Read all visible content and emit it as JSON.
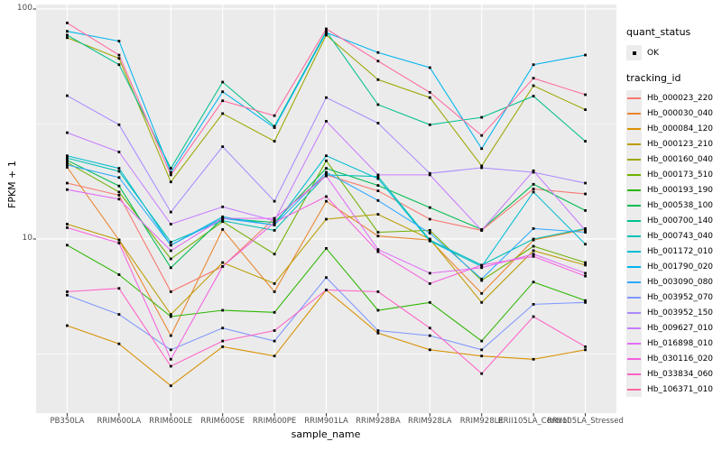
{
  "figure": {
    "y_axis_title": "FPKM + 1",
    "x_axis_title": "sample_name",
    "legend": {
      "quant_title": "quant_status",
      "quant_item": "OK",
      "series_title": "tracking_id"
    },
    "panel_bg": "#ebebeb",
    "grid_color": "#ffffff",
    "point_color": "#000000",
    "axis_text_color": "#4d4d4d"
  },
  "chart_data": {
    "type": "line",
    "title": "",
    "xlabel": "sample_name",
    "ylabel": "FPKM + 1",
    "yscale": "log10",
    "ylim": [
      1.75,
      104.6
    ],
    "y_ticks": [
      {
        "label": "100",
        "value": 100
      },
      {
        "label": "10",
        "value": 10
      }
    ],
    "y_minor_ticks": [
      31.62,
      3.162
    ],
    "grid": true,
    "legend_position": "right",
    "x": [
      "PB350LA",
      "RRIM600LA",
      "RRIM600LE",
      "RRIM600SE",
      "RRIM600PE",
      "RRIM901LA",
      "RRIM928BA",
      "RRIM928LA",
      "RRIM928LE",
      "RRII105LA_Control",
      "RRII105LA_Stressed"
    ],
    "series": [
      {
        "name": "Hb_000023_220",
        "color": "#F8766D",
        "quant_status": "OK",
        "values": [
          17.5,
          15.5,
          5.9,
          7.6,
          12.3,
          19.0,
          16.2,
          12.2,
          10.9,
          16.5,
          15.7
        ]
      },
      {
        "name": "Hb_000030_040",
        "color": "#E9842C",
        "quant_status": "OK",
        "values": [
          20.5,
          9.9,
          3.8,
          11.0,
          5.9,
          14.6,
          10.3,
          9.9,
          5.8,
          9.9,
          11.0
        ]
      },
      {
        "name": "Hb_000084_120",
        "color": "#D89000",
        "quant_status": "OK",
        "values": [
          4.2,
          3.5,
          2.3,
          3.4,
          3.1,
          6.0,
          3.9,
          3.3,
          3.1,
          3.0,
          3.3
        ]
      },
      {
        "name": "Hb_000123_210",
        "color": "#BC9C00",
        "quant_status": "OK",
        "values": [
          11.6,
          9.9,
          4.7,
          7.9,
          6.4,
          12.2,
          12.8,
          10.0,
          5.3,
          8.9,
          7.7
        ]
      },
      {
        "name": "Hb_000160_040",
        "color": "#9CA700",
        "quant_status": "OK",
        "values": [
          75,
          61,
          17.7,
          35.1,
          26.6,
          77,
          49.3,
          41.2,
          20.8,
          46.4,
          36.5
        ]
      },
      {
        "name": "Hb_000173_510",
        "color": "#6FB000",
        "quant_status": "OK",
        "values": [
          21.5,
          16.0,
          8.2,
          11.9,
          8.6,
          21.9,
          10.7,
          10.9,
          6.6,
          9.3,
          7.9
        ]
      },
      {
        "name": "Hb_000193_190",
        "color": "#2CB600",
        "quant_status": "OK",
        "values": [
          9.4,
          7.0,
          4.6,
          4.9,
          4.8,
          9.1,
          4.9,
          5.3,
          3.6,
          6.5,
          5.4
        ]
      },
      {
        "name": "Hb_000538_100",
        "color": "#00BC51",
        "quant_status": "OK",
        "values": [
          22.0,
          17.0,
          7.5,
          12.3,
          11.8,
          20.3,
          17.1,
          13.7,
          11.0,
          17.3,
          13.3
        ]
      },
      {
        "name": "Hb_000700_140",
        "color": "#00C08D",
        "quant_status": "OK",
        "values": [
          77,
          57.3,
          20.3,
          48.1,
          30.9,
          80,
          38.4,
          31.4,
          33.8,
          41.8,
          26.6
        ]
      },
      {
        "name": "Hb_000743_040",
        "color": "#00C0B4",
        "quant_status": "OK",
        "values": [
          22.5,
          19.7,
          9.7,
          12.0,
          10.9,
          19.0,
          18.7,
          9.9,
          7.7,
          10.0,
          11.1
        ]
      },
      {
        "name": "Hb_001172_010",
        "color": "#00BDD2",
        "quant_status": "OK",
        "values": [
          23.0,
          20.3,
          9.4,
          12.5,
          11.5,
          23.0,
          18.3,
          9.8,
          7.6,
          16.0,
          9.5
        ]
      },
      {
        "name": "Hb_001790_020",
        "color": "#00B4EF",
        "quant_status": "OK",
        "values": [
          80,
          72.5,
          19.5,
          43.7,
          30.5,
          79,
          64.7,
          55.6,
          24.7,
          57.3,
          63.1
        ]
      },
      {
        "name": "Hb_003090_080",
        "color": "#2CA9FF",
        "quant_status": "OK",
        "values": [
          21.0,
          18.5,
          9.4,
          12.3,
          11.5,
          19.5,
          14.7,
          10.6,
          6.7,
          11.1,
          10.7
        ]
      },
      {
        "name": "Hb_003952_070",
        "color": "#7F96FF",
        "quant_status": "OK",
        "values": [
          5.7,
          4.7,
          3.3,
          4.1,
          3.6,
          6.8,
          4.0,
          3.8,
          3.3,
          5.2,
          5.3
        ]
      },
      {
        "name": "Hb_003952_150",
        "color": "#A98AFF",
        "quant_status": "OK",
        "values": [
          42,
          31.4,
          13.1,
          25.2,
          14.6,
          41.2,
          31.9,
          19.3,
          20.4,
          19.5,
          17.5
        ]
      },
      {
        "name": "Hb_009627_010",
        "color": "#C77CFF",
        "quant_status": "OK",
        "values": [
          29,
          23.9,
          11.6,
          13.8,
          12.0,
          32.5,
          19.0,
          19.0,
          10.9,
          19.8,
          10.9
        ]
      },
      {
        "name": "Hb_016898_010",
        "color": "#E26EF7",
        "quant_status": "OK",
        "values": [
          16.4,
          14.9,
          8.9,
          12.3,
          12.3,
          18.8,
          9.0,
          7.1,
          7.5,
          8.6,
          7.1
        ]
      },
      {
        "name": "Hb_030116_020",
        "color": "#F462DE",
        "quant_status": "OK",
        "values": [
          11.2,
          9.6,
          3.0,
          7.6,
          11.8,
          15.3,
          8.8,
          6.4,
          7.7,
          8.4,
          6.9
        ]
      },
      {
        "name": "Hb_033834_060",
        "color": "#FF61C7",
        "quant_status": "OK",
        "values": [
          5.9,
          6.1,
          2.8,
          3.6,
          4.0,
          6.0,
          5.9,
          4.1,
          2.6,
          4.6,
          3.4
        ]
      },
      {
        "name": "Hb_106371_010",
        "color": "#FF68A1",
        "quant_status": "OK",
        "values": [
          87,
          63,
          19.0,
          39.9,
          34.4,
          82,
          59.4,
          43.4,
          28.2,
          50,
          42.4
        ]
      }
    ]
  }
}
